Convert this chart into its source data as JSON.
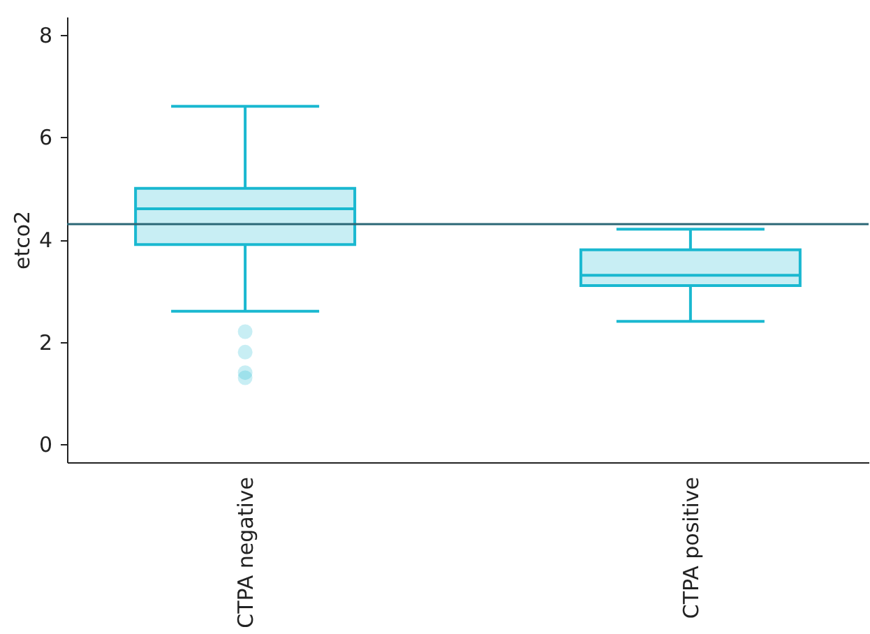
{
  "chart_data": {
    "type": "box",
    "ylabel": "etco2",
    "categories": [
      "CTPA negative",
      "CTPA positive"
    ],
    "ylim": [
      -0.35,
      8.35
    ],
    "yticks": [
      0,
      2,
      4,
      6,
      8
    ],
    "grid": false,
    "series": [
      {
        "color": "#1ab8d0",
        "boxes": [
          {
            "low": 2.6,
            "q1": 3.9,
            "median": 4.6,
            "q3": 5.0,
            "high": 6.6,
            "outliers": [
              2.2,
              1.8,
              1.4,
              1.3
            ]
          },
          {
            "low": 2.4,
            "q1": 3.1,
            "median": 3.3,
            "q3": 3.8,
            "high": 4.2
          }
        ]
      }
    ],
    "ref_lines": [
      {
        "axis": "y",
        "value": 4.3,
        "color": "#2b6776"
      }
    ]
  }
}
